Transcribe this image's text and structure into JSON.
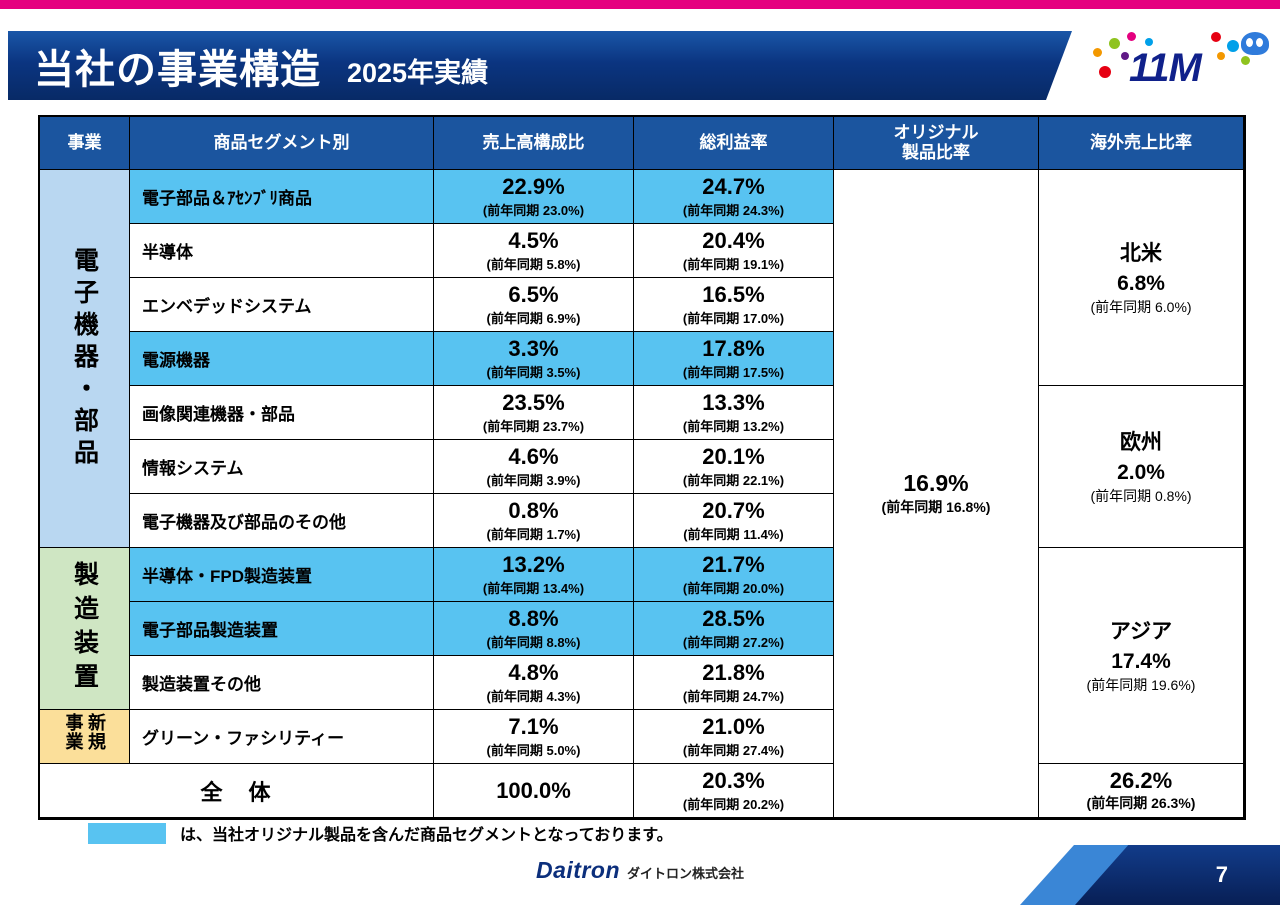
{
  "slide": {
    "title": "当社の事業構造",
    "subtitle": "2025年実績",
    "logo_text": "11M",
    "legend_text": "は、当社オリジナル製品を含んだ商品セグメントとなっております。",
    "footer_brand": "Daitron",
    "footer_company": "ダイトロン株式会社",
    "page_number": "7"
  },
  "colors": {
    "accent_pink": "#e5017f",
    "header_blue": "#1b559f",
    "highlight_blue": "#58c3f1",
    "group_blue": "#b9d7f1",
    "group_green": "#cfe6c3",
    "group_yellow": "#fbdf9a"
  },
  "table": {
    "headers": {
      "business": "事業",
      "segment": "商品セグメント別",
      "sales": "売上高構成比",
      "margin": "総利益率",
      "original_line1": "オリジナル",
      "original_line2": "製品比率",
      "overseas": "海外売上比率"
    },
    "groups": [
      {
        "label": "電子機器・部品"
      },
      {
        "label": "製造装置"
      },
      {
        "label": "新規事業"
      }
    ],
    "rows": [
      {
        "segment": "電子部品＆ｱｾﾝﾌﾞﾘ商品",
        "sales": "22.9%",
        "sales_prev": "(前年同期  23.0%)",
        "margin": "24.7%",
        "margin_prev": "(前年同期  24.3%)",
        "highlight": true
      },
      {
        "segment": "半導体",
        "sales": "4.5%",
        "sales_prev": "(前年同期  5.8%)",
        "margin": "20.4%",
        "margin_prev": "(前年同期  19.1%)",
        "highlight": false
      },
      {
        "segment": "エンベデッドシステム",
        "sales": "6.5%",
        "sales_prev": "(前年同期  6.9%)",
        "margin": "16.5%",
        "margin_prev": "(前年同期  17.0%)",
        "highlight": false
      },
      {
        "segment": "電源機器",
        "sales": "3.3%",
        "sales_prev": "(前年同期  3.5%)",
        "margin": "17.8%",
        "margin_prev": "(前年同期  17.5%)",
        "highlight": true
      },
      {
        "segment": "画像関連機器・部品",
        "sales": "23.5%",
        "sales_prev": "(前年同期  23.7%)",
        "margin": "13.3%",
        "margin_prev": "(前年同期  13.2%)",
        "highlight": false
      },
      {
        "segment": "情報システム",
        "sales": "4.6%",
        "sales_prev": "(前年同期  3.9%)",
        "margin": "20.1%",
        "margin_prev": "(前年同期  22.1%)",
        "highlight": false
      },
      {
        "segment": "電子機器及び部品のその他",
        "sales": "0.8%",
        "sales_prev": "(前年同期  1.7%)",
        "margin": "20.7%",
        "margin_prev": "(前年同期  11.4%)",
        "highlight": false
      },
      {
        "segment": "半導体・FPD製造装置",
        "sales": "13.2%",
        "sales_prev": "(前年同期  13.4%)",
        "margin": "21.7%",
        "margin_prev": "(前年同期  20.0%)",
        "highlight": true
      },
      {
        "segment": "電子部品製造装置",
        "sales": "8.8%",
        "sales_prev": "(前年同期  8.8%)",
        "margin": "28.5%",
        "margin_prev": "(前年同期  27.2%)",
        "highlight": true
      },
      {
        "segment": "製造装置その他",
        "sales": "4.8%",
        "sales_prev": "(前年同期  4.3%)",
        "margin": "21.8%",
        "margin_prev": "(前年同期  24.7%)",
        "highlight": false
      },
      {
        "segment": "グリーン・ファシリティー",
        "sales": "7.1%",
        "sales_prev": "(前年同期  5.0%)",
        "margin": "21.0%",
        "margin_prev": "(前年同期  27.4%)",
        "highlight": false
      }
    ],
    "original": {
      "value": "16.9%",
      "prev": "(前年同期  16.8%)"
    },
    "overseas": [
      {
        "region": "北米",
        "value": "6.8%",
        "prev": "(前年同期  6.0%)"
      },
      {
        "region": "欧州",
        "value": "2.0%",
        "prev": "(前年同期  0.8%)"
      },
      {
        "region": "アジア",
        "value": "17.4%",
        "prev": "(前年同期  19.6%)"
      }
    ],
    "total": {
      "label": "全　体",
      "sales": "100.0%",
      "margin": "20.3%",
      "margin_prev": "(前年同期  20.2%)",
      "overseas": "26.2%",
      "overseas_prev": "(前年同期  26.3%)"
    }
  }
}
